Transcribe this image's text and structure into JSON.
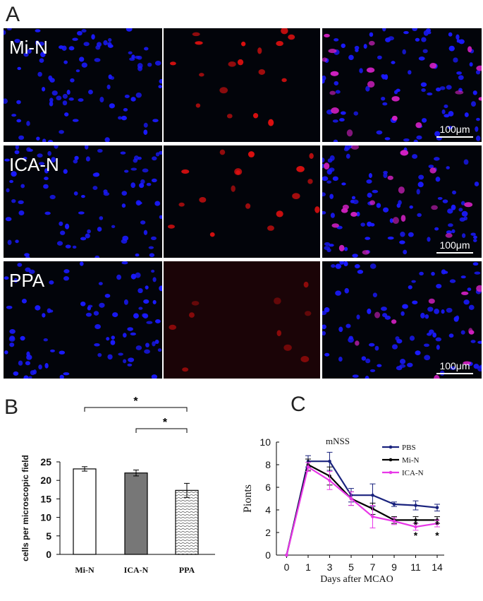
{
  "panel_labels": {
    "a": "A",
    "b": "B",
    "c": "C"
  },
  "micrographs": {
    "rows": [
      {
        "label": "Mi-N",
        "scale": "100μm"
      },
      {
        "label": "ICA-N",
        "scale": "100μm"
      },
      {
        "label": "PPA",
        "scale": "100μm"
      }
    ],
    "colors": {
      "dapi": "#1a1aff",
      "red": "#e01010",
      "merge": "#d020c0",
      "background": "#02040a"
    }
  },
  "chart_data": [
    {
      "type": "bar",
      "categories": [
        "Mi-N",
        "ICA-N",
        "PPA"
      ],
      "values": [
        23.1,
        22.0,
        17.3
      ],
      "errors": [
        0.6,
        0.8,
        1.9
      ],
      "ylabel": "cells per microscopic field",
      "ylim": [
        0,
        25
      ],
      "yticks": [
        0,
        5,
        10,
        15,
        20,
        25
      ],
      "fills": [
        "white",
        "#777777",
        "hatched"
      ],
      "significance": [
        {
          "from": "Mi-N",
          "to": "PPA",
          "label": "*"
        },
        {
          "from": "ICA-N",
          "to": "PPA",
          "label": "*"
        }
      ]
    },
    {
      "type": "line",
      "title": "mNSS",
      "xlabel": "Days after MCAO",
      "ylabel": "Pionts",
      "x": [
        0,
        1,
        3,
        5,
        7,
        9,
        11,
        14
      ],
      "ylim": [
        0,
        10
      ],
      "yticks": [
        0,
        2,
        4,
        6,
        8,
        10
      ],
      "legend_position": "top-right",
      "series": [
        {
          "name": "PBS",
          "color": "#1a237e",
          "values": [
            0,
            8.3,
            8.3,
            5.3,
            5.3,
            4.5,
            4.4,
            4.2
          ],
          "errors": [
            0,
            0.5,
            0.8,
            0.6,
            1.0,
            0.2,
            0.4,
            0.3
          ]
        },
        {
          "name": "Mi-N",
          "color": "#000000",
          "values": [
            0,
            8.0,
            7.0,
            5.0,
            4.1,
            3.1,
            3.1,
            3.1
          ],
          "errors": [
            0,
            0.5,
            0.8,
            0.6,
            0.5,
            0.3,
            0.3,
            0.3
          ]
        },
        {
          "name": "ICA-N",
          "color": "#e838e8",
          "values": [
            0,
            7.8,
            6.6,
            5.0,
            3.4,
            3.0,
            2.5,
            2.8
          ],
          "errors": [
            0,
            0.4,
            0.8,
            0.6,
            1.0,
            0.3,
            0.3,
            0.3
          ]
        }
      ],
      "significance_marks": [
        {
          "x": 11,
          "label": "*"
        },
        {
          "x": 11,
          "label": "*"
        },
        {
          "x": 14,
          "label": "*"
        },
        {
          "x": 14,
          "label": "*"
        }
      ]
    }
  ]
}
